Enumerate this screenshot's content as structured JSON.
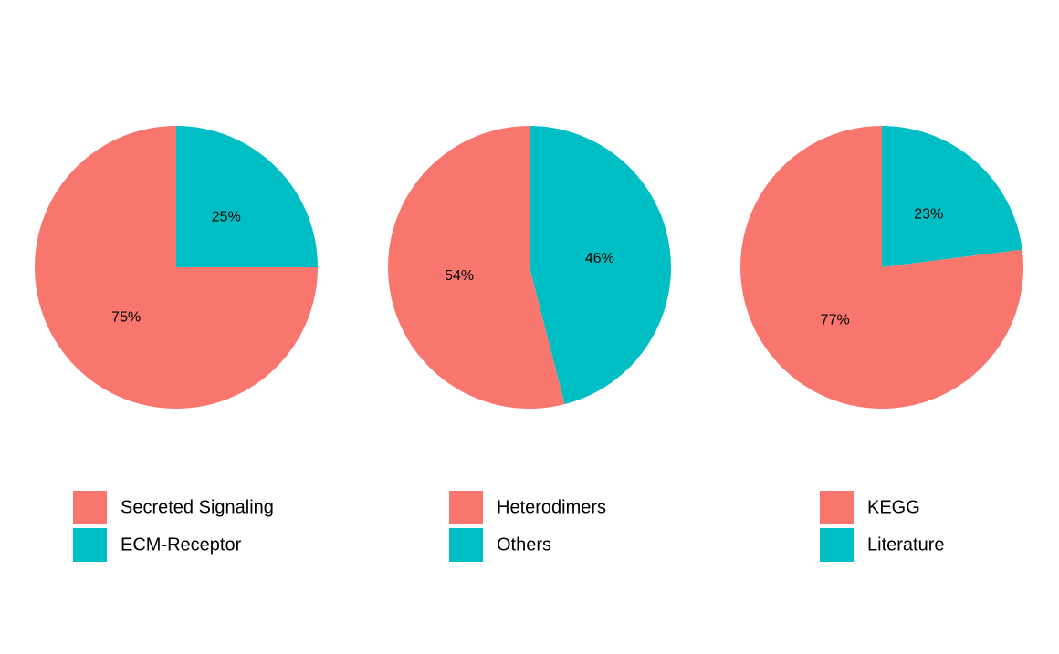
{
  "chart_data": [
    {
      "type": "pie",
      "slices": [
        {
          "label": "Secreted Signaling",
          "value": 75,
          "text": "75%",
          "color": "#F8766D"
        },
        {
          "label": "ECM-Receptor",
          "value": 25,
          "text": "25%",
          "color": "#00BFC4"
        }
      ]
    },
    {
      "type": "pie",
      "slices": [
        {
          "label": "Heterodimers",
          "value": 54,
          "text": "54%",
          "color": "#F8766D"
        },
        {
          "label": "Others",
          "value": 46,
          "text": "46%",
          "color": "#00BFC4"
        }
      ]
    },
    {
      "type": "pie",
      "slices": [
        {
          "label": "KEGG",
          "value": 77,
          "text": "77%",
          "color": "#F8766D"
        },
        {
          "label": "Literature",
          "value": 23,
          "text": "23%",
          "color": "#00BFC4"
        }
      ]
    }
  ]
}
